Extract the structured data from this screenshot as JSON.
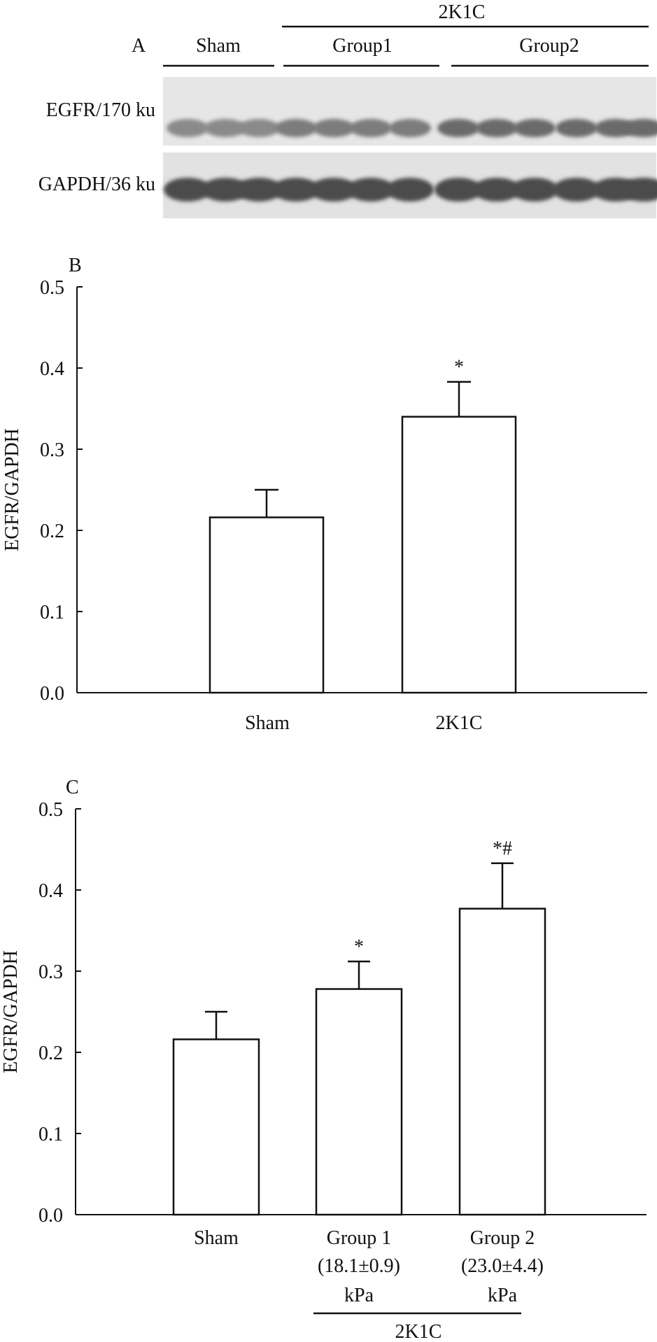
{
  "panel_a": {
    "panel_label": "A",
    "header_2k1c": "2K1C",
    "group_sham": "Sham",
    "group_1": "Group1",
    "group_2": "Group2",
    "row_egfr": "EGFR/170 ku",
    "row_gapdh": "GAPDH/36 ku"
  },
  "chart_data": [
    {
      "type": "bar",
      "panel_label": "B",
      "categories": [
        "Sham",
        "2K1C"
      ],
      "values": [
        0.216,
        0.34
      ],
      "errors": [
        0.034,
        0.043
      ],
      "significance": [
        "",
        "*"
      ],
      "ylabel": "EGFR/GAPDH",
      "ylim": [
        0,
        0.5
      ],
      "yticks": [
        "0.0",
        "0.1",
        "0.2",
        "0.3",
        "0.4",
        "0.5"
      ],
      "grid": false
    },
    {
      "type": "bar",
      "panel_label": "C",
      "categories": [
        "Sham",
        "Group 1",
        "Group 2"
      ],
      "category_sublabels": [
        "",
        "(18.1±0.9)",
        "(23.0±4.4)"
      ],
      "values": [
        0.216,
        0.278,
        0.377
      ],
      "errors": [
        0.034,
        0.034,
        0.056
      ],
      "significance": [
        "",
        "*",
        "*#"
      ],
      "ylabel": "EGFR/GAPDH",
      "ylim": [
        0,
        0.5
      ],
      "yticks": [
        "0.0",
        "0.1",
        "0.2",
        "0.3",
        "0.4",
        "0.5"
      ],
      "units": [
        "kPa",
        "kPa"
      ],
      "group_label": "2K1C",
      "grid": false
    }
  ]
}
